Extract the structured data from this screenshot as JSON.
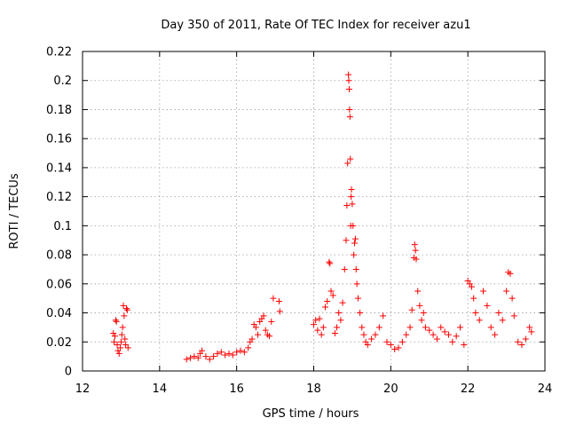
{
  "chart_data": {
    "type": "scatter",
    "title": "Day 350 of 2011, Rate Of TEC Index for receiver azu1",
    "xlabel": "GPS time / hours",
    "ylabel": "ROTI / TECUs",
    "xlim": [
      12,
      24
    ],
    "ylim": [
      0,
      0.22
    ],
    "x_ticks": [
      "12",
      "14",
      "16",
      "18",
      "20",
      "22",
      "24"
    ],
    "y_ticks": [
      "0",
      "0.02",
      "0.04",
      "0.06",
      "0.08",
      "0.1",
      "0.12",
      "0.14",
      "0.16",
      "0.18",
      "0.2",
      "0.22"
    ],
    "grid": true,
    "marker": "+",
    "colors": {
      "series": "#ff0000"
    },
    "series": [
      {
        "name": "azu1",
        "points": [
          [
            12.8,
            0.026
          ],
          [
            12.82,
            0.02
          ],
          [
            12.84,
            0.024
          ],
          [
            12.86,
            0.035
          ],
          [
            12.88,
            0.034
          ],
          [
            12.9,
            0.018
          ],
          [
            12.92,
            0.014
          ],
          [
            12.95,
            0.012
          ],
          [
            12.98,
            0.016
          ],
          [
            13.0,
            0.02
          ],
          [
            13.02,
            0.025
          ],
          [
            13.04,
            0.03
          ],
          [
            13.06,
            0.045
          ],
          [
            13.08,
            0.038
          ],
          [
            13.1,
            0.022
          ],
          [
            13.12,
            0.018
          ],
          [
            13.14,
            0.043
          ],
          [
            13.16,
            0.042
          ],
          [
            13.18,
            0.016
          ],
          [
            14.7,
            0.008
          ],
          [
            14.8,
            0.009
          ],
          [
            14.9,
            0.01
          ],
          [
            15.0,
            0.009
          ],
          [
            15.05,
            0.012
          ],
          [
            15.1,
            0.014
          ],
          [
            15.2,
            0.01
          ],
          [
            15.3,
            0.008
          ],
          [
            15.4,
            0.01
          ],
          [
            15.5,
            0.012
          ],
          [
            15.6,
            0.013
          ],
          [
            15.7,
            0.011
          ],
          [
            15.8,
            0.012
          ],
          [
            15.9,
            0.011
          ],
          [
            16.0,
            0.013
          ],
          [
            16.1,
            0.014
          ],
          [
            16.2,
            0.013
          ],
          [
            16.3,
            0.016
          ],
          [
            16.35,
            0.02
          ],
          [
            16.4,
            0.022
          ],
          [
            16.45,
            0.032
          ],
          [
            16.5,
            0.03
          ],
          [
            16.55,
            0.025
          ],
          [
            16.6,
            0.034
          ],
          [
            16.65,
            0.036
          ],
          [
            16.7,
            0.038
          ],
          [
            16.75,
            0.028
          ],
          [
            16.8,
            0.025
          ],
          [
            16.85,
            0.024
          ],
          [
            16.9,
            0.034
          ],
          [
            16.95,
            0.05
          ],
          [
            17.1,
            0.048
          ],
          [
            17.12,
            0.041
          ],
          [
            18.0,
            0.032
          ],
          [
            18.05,
            0.035
          ],
          [
            18.1,
            0.028
          ],
          [
            18.15,
            0.036
          ],
          [
            18.2,
            0.025
          ],
          [
            18.25,
            0.03
          ],
          [
            18.3,
            0.044
          ],
          [
            18.35,
            0.048
          ],
          [
            18.4,
            0.075
          ],
          [
            18.42,
            0.074
          ],
          [
            18.45,
            0.055
          ],
          [
            18.5,
            0.052
          ],
          [
            18.55,
            0.026
          ],
          [
            18.6,
            0.03
          ],
          [
            18.65,
            0.04
          ],
          [
            18.7,
            0.035
          ],
          [
            18.75,
            0.047
          ],
          [
            18.8,
            0.07
          ],
          [
            18.84,
            0.09
          ],
          [
            18.86,
            0.114
          ],
          [
            18.88,
            0.143
          ],
          [
            18.9,
            0.204
          ],
          [
            18.91,
            0.2
          ],
          [
            18.92,
            0.194
          ],
          [
            18.93,
            0.18
          ],
          [
            18.94,
            0.175
          ],
          [
            18.95,
            0.146
          ],
          [
            18.96,
            0.1
          ],
          [
            18.97,
            0.12
          ],
          [
            18.98,
            0.125
          ],
          [
            19.0,
            0.115
          ],
          [
            19.02,
            0.1
          ],
          [
            19.04,
            0.08
          ],
          [
            19.06,
            0.088
          ],
          [
            19.08,
            0.091
          ],
          [
            19.1,
            0.07
          ],
          [
            19.12,
            0.06
          ],
          [
            19.15,
            0.05
          ],
          [
            19.2,
            0.04
          ],
          [
            19.25,
            0.03
          ],
          [
            19.3,
            0.025
          ],
          [
            19.35,
            0.02
          ],
          [
            19.4,
            0.018
          ],
          [
            19.5,
            0.022
          ],
          [
            19.6,
            0.025
          ],
          [
            19.7,
            0.03
          ],
          [
            19.8,
            0.038
          ],
          [
            19.9,
            0.02
          ],
          [
            20.0,
            0.018
          ],
          [
            20.1,
            0.015
          ],
          [
            20.2,
            0.016
          ],
          [
            20.3,
            0.02
          ],
          [
            20.4,
            0.025
          ],
          [
            20.5,
            0.03
          ],
          [
            20.55,
            0.042
          ],
          [
            20.6,
            0.078
          ],
          [
            20.62,
            0.087
          ],
          [
            20.64,
            0.083
          ],
          [
            20.66,
            0.077
          ],
          [
            20.7,
            0.055
          ],
          [
            20.75,
            0.045
          ],
          [
            20.8,
            0.035
          ],
          [
            20.85,
            0.04
          ],
          [
            20.9,
            0.03
          ],
          [
            21.0,
            0.028
          ],
          [
            21.1,
            0.025
          ],
          [
            21.2,
            0.022
          ],
          [
            21.3,
            0.03
          ],
          [
            21.4,
            0.027
          ],
          [
            21.5,
            0.025
          ],
          [
            21.6,
            0.02
          ],
          [
            21.7,
            0.024
          ],
          [
            21.8,
            0.03
          ],
          [
            21.9,
            0.018
          ],
          [
            22.0,
            0.062
          ],
          [
            22.05,
            0.06
          ],
          [
            22.1,
            0.058
          ],
          [
            22.15,
            0.05
          ],
          [
            22.2,
            0.04
          ],
          [
            22.3,
            0.035
          ],
          [
            22.4,
            0.055
          ],
          [
            22.5,
            0.045
          ],
          [
            22.6,
            0.03
          ],
          [
            22.7,
            0.025
          ],
          [
            22.8,
            0.04
          ],
          [
            22.9,
            0.035
          ],
          [
            23.0,
            0.055
          ],
          [
            23.05,
            0.068
          ],
          [
            23.1,
            0.067
          ],
          [
            23.15,
            0.05
          ],
          [
            23.2,
            0.038
          ],
          [
            23.3,
            0.02
          ],
          [
            23.4,
            0.018
          ],
          [
            23.5,
            0.022
          ],
          [
            23.6,
            0.03
          ],
          [
            23.65,
            0.027
          ]
        ]
      }
    ]
  }
}
